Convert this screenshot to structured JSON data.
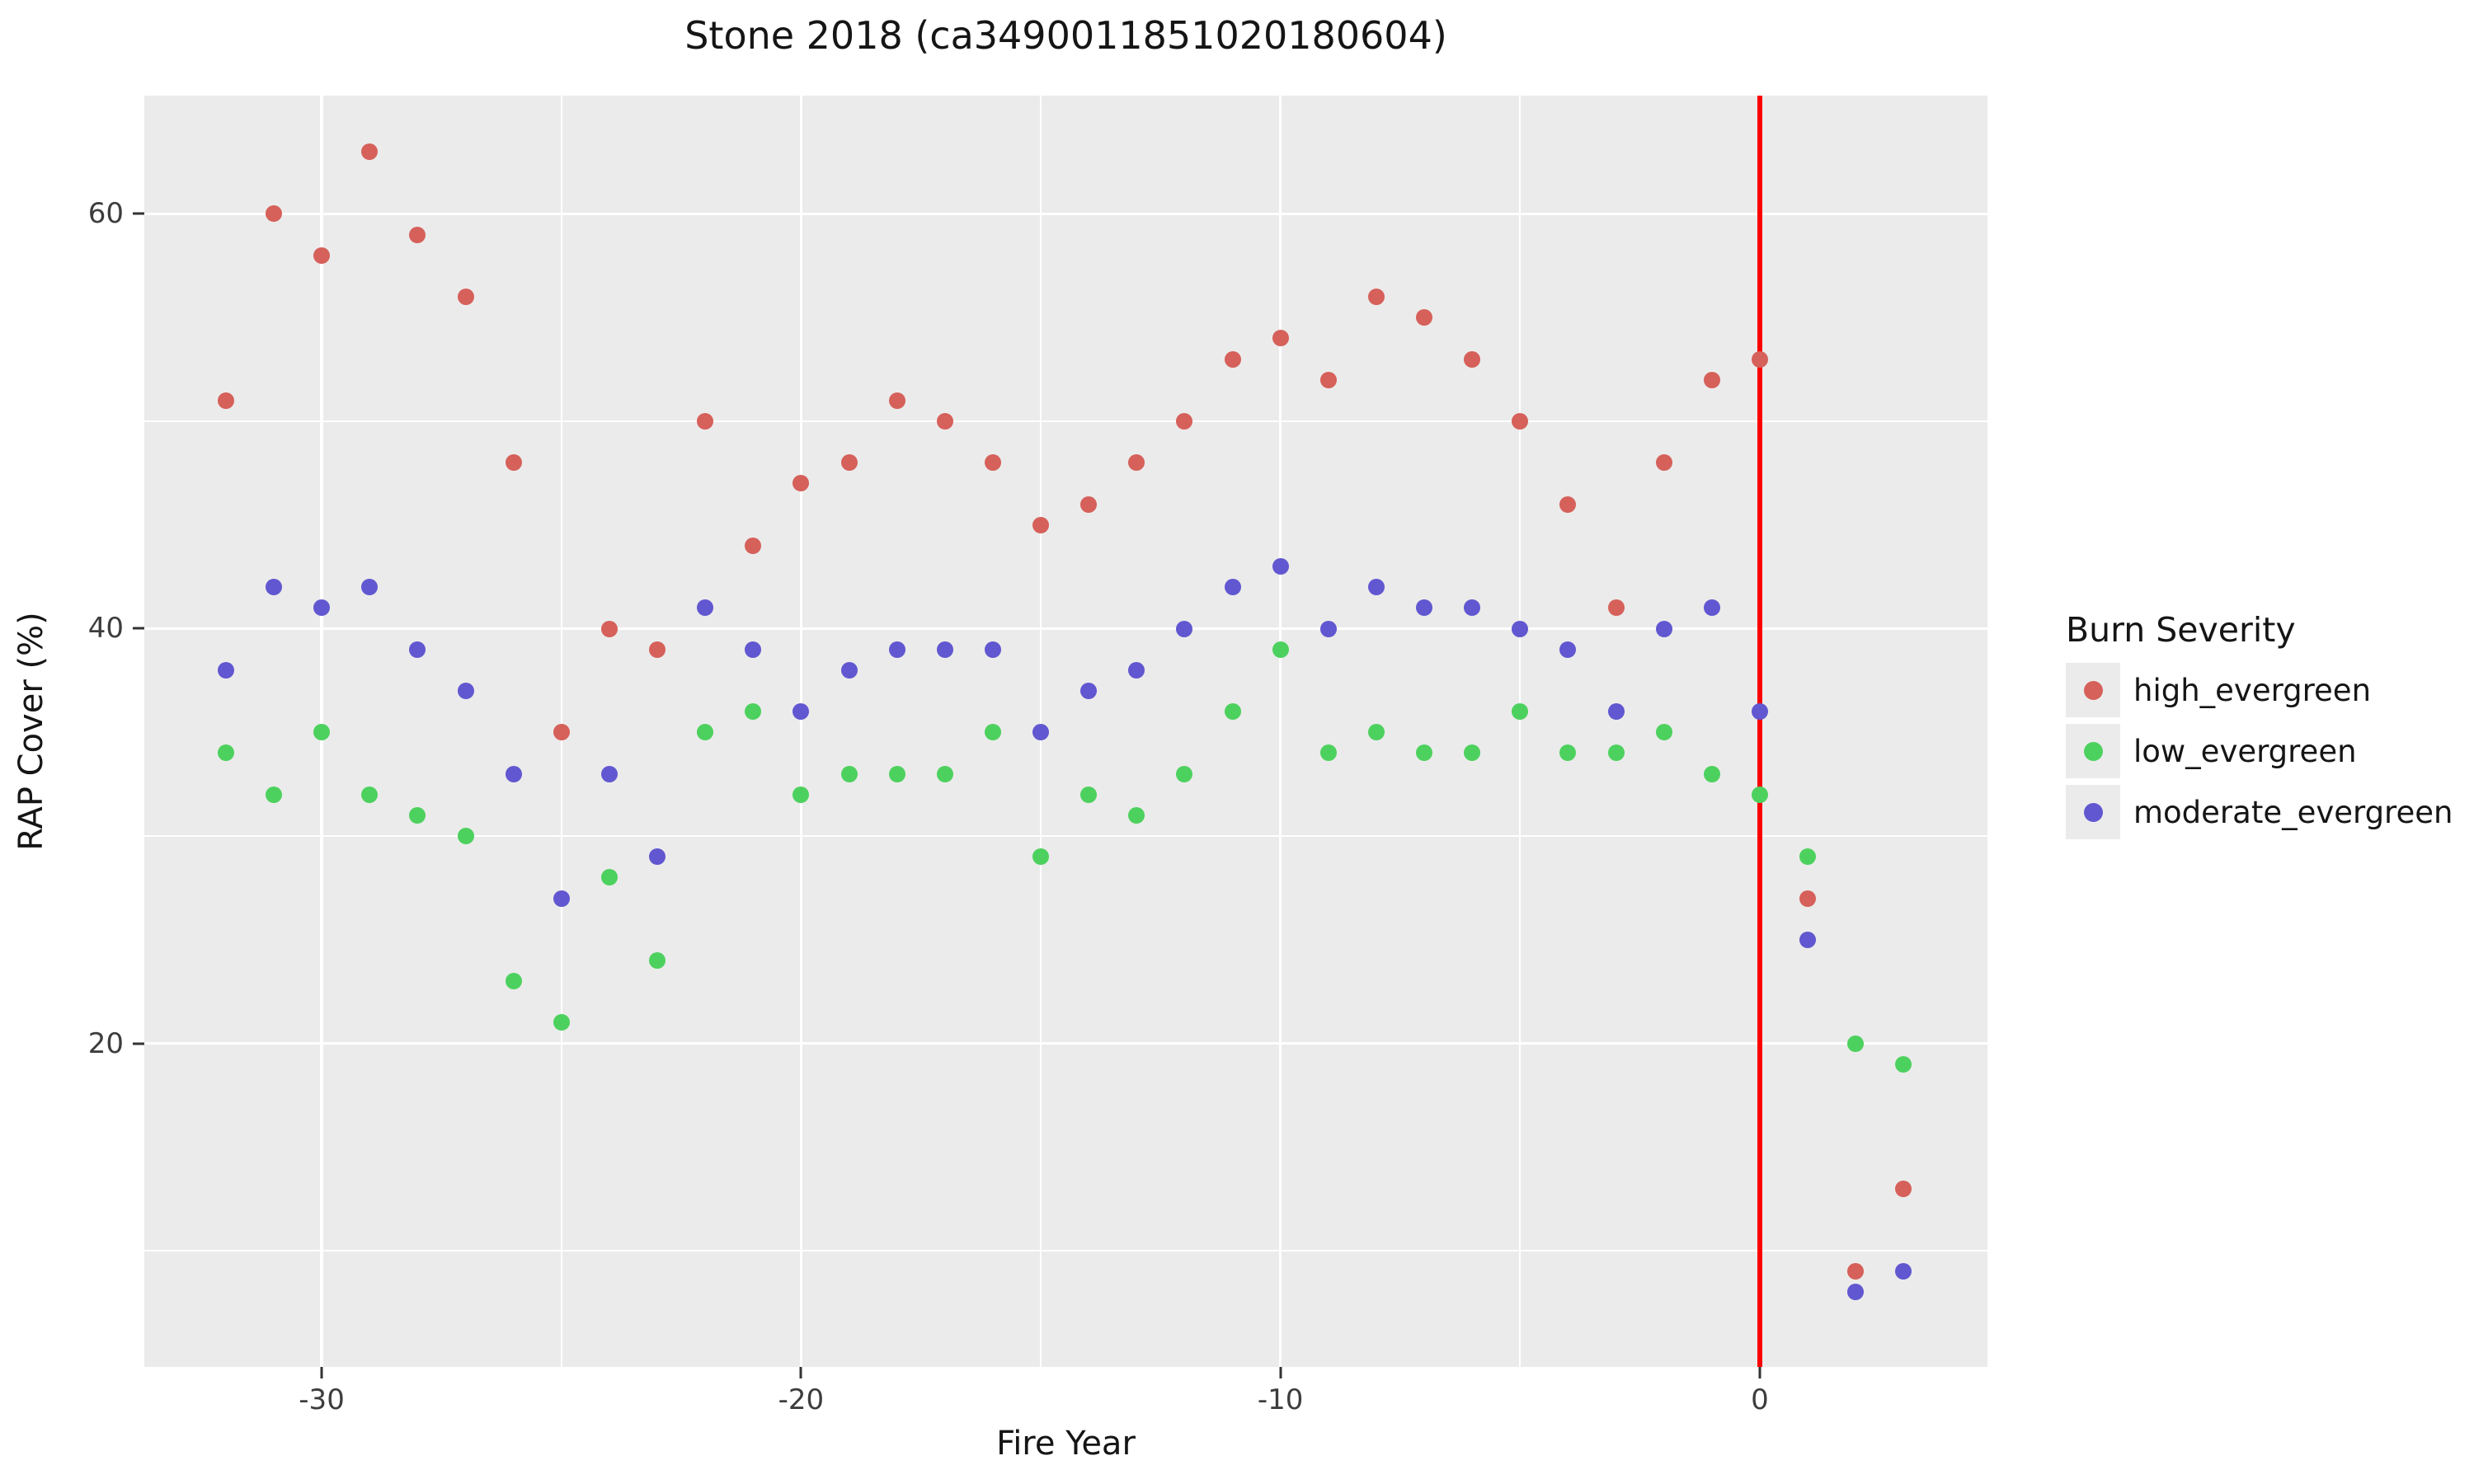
{
  "title": "Stone 2018 (ca3490011851020180604)",
  "x_axis": {
    "label": "Fire Year",
    "tick_labels": [
      "-30",
      "-20",
      "-10",
      "0"
    ],
    "tick_values": [
      -30,
      -20,
      -10,
      0
    ]
  },
  "y_axis": {
    "label": "RAP Cover (%)",
    "tick_labels": [
      "20",
      "40",
      "60"
    ],
    "tick_values": [
      20,
      40,
      60
    ]
  },
  "legend": {
    "title": "Burn Severity",
    "items": [
      {
        "label": "high_evergreen",
        "color": "#d6605a"
      },
      {
        "label": "low_evergreen",
        "color": "#4dd15e"
      },
      {
        "label": "moderate_evergreen",
        "color": "#6157d0"
      }
    ]
  },
  "colors": {
    "panel_bg": "#ebebeb",
    "grid": "#ffffff",
    "fire_line": "#fb0000",
    "point_red": "#d6605a",
    "point_green": "#4dd15e",
    "point_blue": "#6157d0",
    "tick_text": "#3d3d3d",
    "text": "#151515"
  },
  "chart_data": {
    "type": "scatter",
    "title": "Stone 2018 (ca3490011851020180604)",
    "xlabel": "Fire Year",
    "ylabel": "RAP Cover (%)",
    "xlim": [
      -33.7,
      4.75
    ],
    "ylim": [
      4.4,
      65.7
    ],
    "x_major_gridlines": [
      -30,
      -20,
      -10,
      0
    ],
    "x_minor_gridlines": [
      -25,
      -15,
      -5
    ],
    "y_major_gridlines": [
      20,
      40,
      60
    ],
    "y_minor_gridlines": [
      10,
      30,
      50
    ],
    "grid": "on",
    "legend_position": "right",
    "vline_x": 0,
    "x": [
      -32,
      -31,
      -30,
      -29,
      -28,
      -27,
      -26,
      -25,
      -24,
      -23,
      -22,
      -21,
      -20,
      -19,
      -18,
      -17,
      -16,
      -15,
      -14,
      -13,
      -12,
      -11,
      -10,
      -9,
      -8,
      -7,
      -6,
      -5,
      -4,
      -3,
      -2,
      -1,
      0,
      1,
      2,
      3
    ],
    "series": [
      {
        "name": "high_evergreen",
        "color": "#d6605a",
        "values": [
          51,
          60,
          58,
          63,
          59,
          56,
          48,
          35,
          40,
          39,
          50,
          44,
          47,
          48,
          51,
          50,
          48,
          45,
          46,
          48,
          50,
          53,
          54,
          52,
          56,
          55,
          53,
          50,
          46,
          41,
          48,
          52,
          53,
          27,
          9,
          13
        ]
      },
      {
        "name": "low_evergreen",
        "color": "#4dd15e",
        "values": [
          34,
          32,
          35,
          32,
          31,
          30,
          23,
          21,
          28,
          24,
          35,
          36,
          32,
          33,
          33,
          33,
          35,
          29,
          32,
          31,
          33,
          36,
          39,
          34,
          35,
          34,
          34,
          36,
          34,
          34,
          35,
          33,
          32,
          29,
          20,
          19
        ]
      },
      {
        "name": "moderate_evergreen",
        "color": "#6157d0",
        "values": [
          38,
          42,
          41,
          42,
          39,
          37,
          33,
          27,
          33,
          29,
          41,
          39,
          36,
          38,
          39,
          39,
          39,
          35,
          37,
          38,
          40,
          42,
          43,
          40,
          42,
          41,
          41,
          40,
          39,
          36,
          40,
          41,
          36,
          25,
          8,
          9
        ]
      }
    ]
  }
}
